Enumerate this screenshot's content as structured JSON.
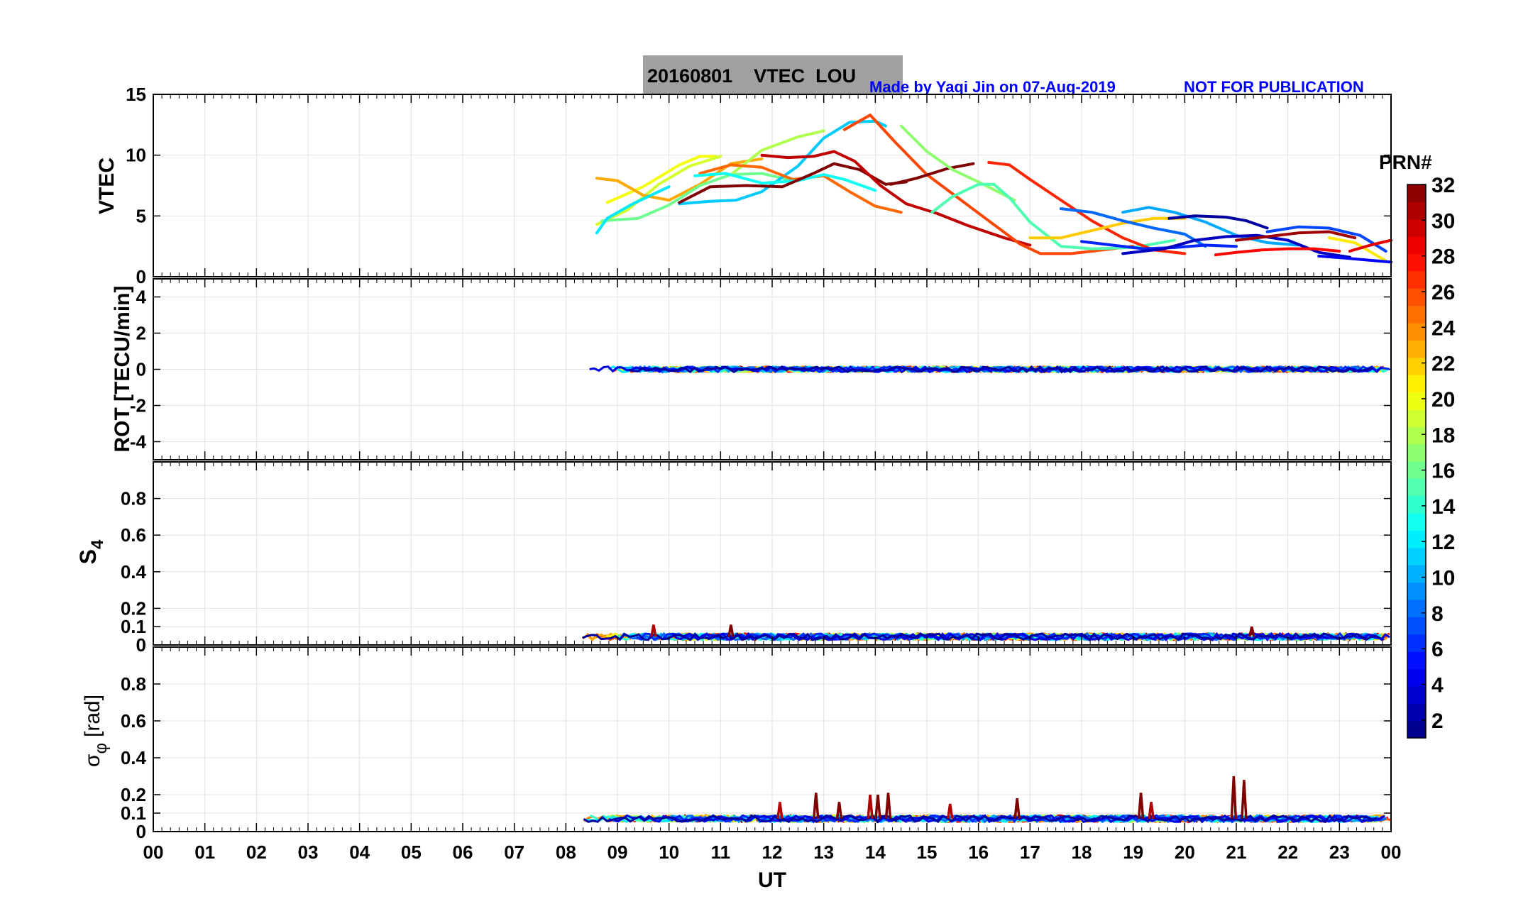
{
  "header": {
    "title": "20160801    VTEC  LOU",
    "credit": "Made by Yaqi Jin on 07-Aug-2019",
    "notice": "NOT FOR PUBLICATION",
    "title_bg": "#a0a0a0",
    "credit_color": "#0000ff"
  },
  "xaxis": {
    "label": "UT",
    "ticks": [
      "00",
      "01",
      "02",
      "03",
      "04",
      "05",
      "06",
      "07",
      "08",
      "09",
      "10",
      "11",
      "12",
      "13",
      "14",
      "15",
      "16",
      "17",
      "18",
      "19",
      "20",
      "21",
      "22",
      "23",
      "00"
    ]
  },
  "colorbar": {
    "title": "PRN#",
    "colormap": "jet",
    "range": [
      1,
      32
    ],
    "ticks": [
      "2",
      "4",
      "6",
      "8",
      "10",
      "12",
      "14",
      "16",
      "18",
      "20",
      "22",
      "24",
      "26",
      "28",
      "30",
      "32"
    ]
  },
  "chart_data": [
    {
      "type": "line",
      "ylabel": "VTEC",
      "xlim": [
        0,
        24
      ],
      "ylim": [
        0,
        15
      ],
      "yticks": [
        "0",
        "5",
        "10",
        "15"
      ],
      "grid": true,
      "series": [
        {
          "prn": 20,
          "x": [
            8.8,
            9.5,
            10.2,
            10.6,
            10.9
          ],
          "y": [
            6.1,
            7.4,
            9.2,
            9.9,
            9.9
          ]
        },
        {
          "prn": 19,
          "x": [
            8.6,
            9.2,
            9.8,
            10.4,
            11.0
          ],
          "y": [
            4.3,
            5.5,
            7.6,
            9.1,
            9.9
          ]
        },
        {
          "prn": 23,
          "x": [
            8.6,
            9.0,
            9.5,
            10.0,
            10.6,
            11.2,
            11.8
          ],
          "y": [
            8.1,
            7.9,
            6.7,
            6.3,
            7.6,
            9.3,
            9.7
          ]
        },
        {
          "prn": 16,
          "x": [
            8.7,
            9.4,
            10.0,
            10.6,
            11.2,
            11.8,
            12.3
          ],
          "y": [
            4.6,
            4.8,
            5.9,
            7.5,
            8.4,
            8.5,
            8.0
          ]
        },
        {
          "prn": 12,
          "x": [
            8.6,
            8.8,
            9.3,
            10.0
          ],
          "y": [
            3.6,
            4.8,
            6.0,
            7.4
          ]
        },
        {
          "prn": 18,
          "x": [
            11.2,
            11.8,
            12.5,
            13.0
          ],
          "y": [
            8.4,
            10.4,
            11.5,
            12.0
          ]
        },
        {
          "prn": 11,
          "x": [
            10.2,
            10.8,
            11.3,
            11.8,
            12.5,
            13.0,
            13.5,
            14.0,
            14.2
          ],
          "y": [
            6.0,
            6.2,
            6.3,
            7.0,
            9.1,
            11.4,
            12.7,
            12.8,
            12.4
          ]
        },
        {
          "prn": 25,
          "x": [
            10.6,
            11.2,
            11.8,
            12.4,
            13.0,
            13.5,
            14.0,
            14.5
          ],
          "y": [
            8.5,
            9.2,
            9.0,
            8.0,
            8.3,
            7.0,
            5.8,
            5.3
          ]
        },
        {
          "prn": 13,
          "x": [
            10.5,
            11.1,
            11.8,
            12.5,
            13.0,
            13.4,
            14.0
          ],
          "y": [
            8.3,
            8.5,
            7.7,
            7.9,
            8.4,
            8.0,
            7.1
          ]
        },
        {
          "prn": 32,
          "x": [
            10.2,
            10.8,
            11.5,
            12.2,
            12.8,
            13.2,
            13.7,
            14.2,
            14.6
          ],
          "y": [
            6.1,
            7.4,
            7.5,
            7.4,
            8.5,
            9.3,
            8.8,
            7.6,
            7.8
          ]
        },
        {
          "prn": 30,
          "x": [
            11.8,
            12.3,
            12.8,
            13.2,
            13.6,
            14.1,
            14.6,
            15.2,
            15.8,
            16.5,
            17.0
          ],
          "y": [
            10.0,
            9.8,
            9.9,
            10.3,
            9.5,
            7.5,
            6.0,
            5.2,
            4.2,
            3.2,
            2.6
          ]
        },
        {
          "prn": 26,
          "x": [
            13.4,
            13.9,
            14.4,
            15.0,
            15.6,
            16.2,
            16.8,
            17.2,
            17.8,
            18.4,
            19.0
          ],
          "y": [
            12.1,
            13.3,
            11.0,
            8.4,
            6.5,
            4.6,
            2.7,
            1.9,
            1.9,
            2.2,
            2.5
          ]
        },
        {
          "prn": 32,
          "x": [
            14.3,
            14.8,
            15.4,
            15.9
          ],
          "y": [
            7.6,
            8.1,
            8.9,
            9.3
          ]
        },
        {
          "prn": 17,
          "x": [
            14.5,
            15.0,
            15.5,
            16.0,
            16.7
          ],
          "y": [
            12.4,
            10.3,
            8.8,
            7.8,
            6.3
          ]
        },
        {
          "prn": 15,
          "x": [
            15.1,
            15.5,
            16.0,
            16.3,
            16.6,
            17.0,
            17.6,
            18.2,
            19.0,
            19.8
          ],
          "y": [
            5.3,
            6.6,
            7.6,
            7.6,
            6.5,
            4.5,
            2.5,
            2.3,
            2.4,
            3.0
          ]
        },
        {
          "prn": 27,
          "x": [
            16.2,
            16.6,
            17.0,
            17.6,
            18.2,
            18.8,
            19.4,
            20.0
          ],
          "y": [
            9.4,
            9.2,
            8.0,
            6.3,
            4.6,
            3.2,
            2.2,
            1.9
          ]
        },
        {
          "prn": 22,
          "x": [
            17.0,
            17.6,
            18.2,
            18.8,
            19.4,
            20.0
          ],
          "y": [
            3.2,
            3.2,
            3.8,
            4.4,
            4.8,
            4.8
          ]
        },
        {
          "prn": 8,
          "x": [
            17.6,
            18.2,
            18.8,
            19.4,
            20.0,
            20.4
          ],
          "y": [
            5.6,
            5.3,
            4.6,
            4.0,
            3.5,
            2.5
          ]
        },
        {
          "prn": 6,
          "x": [
            18.0,
            18.6,
            19.2,
            19.8,
            20.4,
            21.0
          ],
          "y": [
            2.9,
            2.6,
            2.3,
            2.4,
            2.6,
            2.5
          ]
        },
        {
          "prn": 10,
          "x": [
            18.8,
            19.3,
            19.8,
            20.4,
            21.0,
            21.6,
            22.2
          ],
          "y": [
            5.3,
            5.7,
            5.3,
            4.5,
            3.4,
            2.8,
            2.6
          ]
        },
        {
          "prn": 3,
          "x": [
            18.8,
            19.6,
            20.2,
            20.8,
            21.4,
            22.0,
            22.6,
            23.2
          ],
          "y": [
            1.9,
            2.3,
            3.0,
            3.3,
            3.4,
            3.0,
            2.0,
            1.6
          ]
        },
        {
          "prn": 2,
          "x": [
            19.7,
            20.2,
            20.8,
            21.2,
            21.6
          ],
          "y": [
            4.8,
            5.0,
            4.9,
            4.6,
            4.0
          ]
        },
        {
          "prn": 28,
          "x": [
            20.6,
            21.0,
            21.5,
            22.0,
            22.5,
            23.0
          ],
          "y": [
            1.8,
            2.0,
            2.2,
            2.3,
            2.3,
            2.1
          ]
        },
        {
          "prn": 7,
          "x": [
            21.6,
            22.2,
            22.8,
            23.4,
            23.9
          ],
          "y": [
            3.7,
            4.1,
            4.0,
            3.4,
            2.1
          ]
        },
        {
          "prn": 31,
          "x": [
            21.0,
            21.6,
            22.2,
            22.8,
            23.3
          ],
          "y": [
            3.0,
            3.3,
            3.6,
            3.7,
            3.2
          ]
        },
        {
          "prn": 21,
          "x": [
            22.8,
            23.3,
            23.9
          ],
          "y": [
            3.2,
            2.8,
            1.3
          ]
        },
        {
          "prn": 29,
          "x": [
            23.2,
            23.6,
            24.0
          ],
          "y": [
            2.1,
            2.6,
            3.0
          ]
        },
        {
          "prn": 5,
          "x": [
            22.6,
            23.2,
            24.0
          ],
          "y": [
            1.7,
            1.5,
            1.2
          ]
        }
      ]
    },
    {
      "type": "scatter",
      "ylabel": "ROT [TECU/min]",
      "xlim": [
        0,
        24
      ],
      "ylim": [
        -5,
        5
      ],
      "yticks": [
        "-4",
        "-2",
        "0",
        "2",
        "4"
      ],
      "grid": true,
      "x_range": [
        8.3,
        24.0
      ],
      "center": 0.0,
      "spread": 0.25
    },
    {
      "type": "scatter",
      "ylabel": "S",
      "ylabel_sub": "4",
      "xlim": [
        0,
        24
      ],
      "ylim": [
        0,
        1
      ],
      "yticks": [
        "0",
        "0.1",
        "0.2",
        "0.4",
        "0.6",
        "0.8"
      ],
      "ytick_values": [
        0,
        0.1,
        0.2,
        0.4,
        0.6,
        0.8
      ],
      "grid": true,
      "x_range": [
        8.3,
        24.0
      ],
      "baseline": 0.045,
      "spikes": [
        {
          "x": 9.7,
          "y": 0.11
        },
        {
          "x": 11.2,
          "y": 0.11
        },
        {
          "x": 21.3,
          "y": 0.1
        }
      ]
    },
    {
      "type": "scatter",
      "ylabel": "σ",
      "ylabel_sub": "φ",
      "ylabel_unit": "[rad]",
      "xlim": [
        0,
        24
      ],
      "ylim": [
        0,
        1
      ],
      "yticks": [
        "0",
        "0.1",
        "0.2",
        "0.4",
        "0.6",
        "0.8"
      ],
      "ytick_values": [
        0,
        0.1,
        0.2,
        0.4,
        0.6,
        0.8
      ],
      "grid": true,
      "x_range": [
        8.3,
        24.0
      ],
      "baseline": 0.07,
      "spikes": [
        {
          "x": 12.15,
          "y": 0.16
        },
        {
          "x": 12.85,
          "y": 0.21
        },
        {
          "x": 13.3,
          "y": 0.16
        },
        {
          "x": 13.9,
          "y": 0.2
        },
        {
          "x": 14.05,
          "y": 0.2
        },
        {
          "x": 14.25,
          "y": 0.21
        },
        {
          "x": 15.45,
          "y": 0.15
        },
        {
          "x": 16.75,
          "y": 0.18
        },
        {
          "x": 19.15,
          "y": 0.21
        },
        {
          "x": 19.35,
          "y": 0.16
        },
        {
          "x": 20.95,
          "y": 0.3
        },
        {
          "x": 21.15,
          "y": 0.28
        }
      ]
    }
  ]
}
